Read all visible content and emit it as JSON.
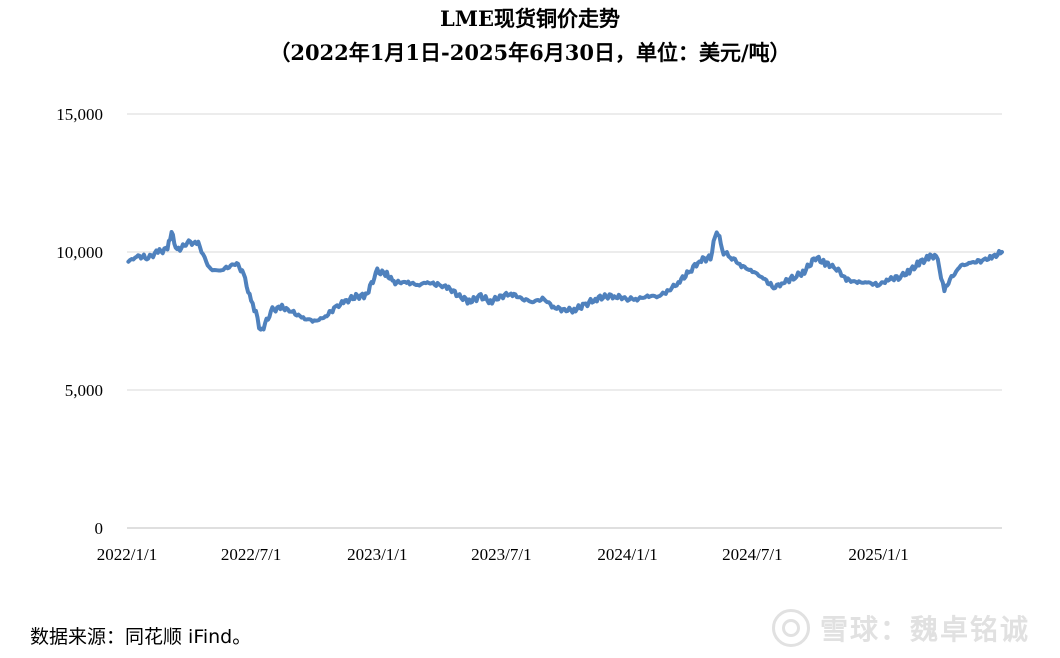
{
  "chart_data": {
    "type": "line",
    "title": "LME现货铜价走势",
    "subtitle": "（2022年1月1日-2025年6月30日，单位：美元/吨）",
    "xlabel": "",
    "ylabel": "",
    "ylim": [
      0,
      15000
    ],
    "yticks": [
      0,
      5000,
      10000,
      15000
    ],
    "ytick_labels": [
      "0",
      "5,000",
      "10,000",
      "15,000"
    ],
    "xlim": [
      "2022-01-01",
      "2025-06-30"
    ],
    "xticks": [
      "2022-01-01",
      "2022-07-01",
      "2023-01-01",
      "2023-07-01",
      "2024-01-01",
      "2024-07-01",
      "2025-01-01"
    ],
    "xtick_labels": [
      "2022/1/1",
      "2022/7/1",
      "2023/1/1",
      "2023/7/1",
      "2024/1/1",
      "2024/7/1",
      "2025/1/1"
    ],
    "grid": true,
    "legend": "none",
    "series_color": "#4F81BD",
    "series": [
      {
        "x": [
          "2022-01-03",
          "2022-01-15",
          "2022-02-01",
          "2022-02-15",
          "2022-03-01",
          "2022-03-07",
          "2022-03-15",
          "2022-04-01",
          "2022-04-15",
          "2022-05-01",
          "2022-05-15",
          "2022-06-01",
          "2022-06-10",
          "2022-06-20",
          "2022-07-01",
          "2022-07-08",
          "2022-07-15",
          "2022-08-01",
          "2022-08-15",
          "2022-09-01",
          "2022-09-15",
          "2022-10-01",
          "2022-10-15",
          "2022-11-01",
          "2022-11-15",
          "2022-12-01",
          "2022-12-15",
          "2023-01-01",
          "2023-01-15",
          "2023-01-25",
          "2023-02-15",
          "2023-03-01",
          "2023-03-15",
          "2023-04-01",
          "2023-04-15",
          "2023-05-01",
          "2023-05-15",
          "2023-06-01",
          "2023-06-15",
          "2023-07-01",
          "2023-07-15",
          "2023-08-01",
          "2023-08-15",
          "2023-09-01",
          "2023-09-15",
          "2023-10-01",
          "2023-10-15",
          "2023-11-01",
          "2023-11-15",
          "2023-12-01",
          "2023-12-15",
          "2024-01-01",
          "2024-01-15",
          "2024-02-01",
          "2024-02-15",
          "2024-03-01",
          "2024-03-15",
          "2024-04-01",
          "2024-04-15",
          "2024-05-01",
          "2024-05-10",
          "2024-05-20",
          "2024-06-01",
          "2024-06-15",
          "2024-07-01",
          "2024-07-15",
          "2024-08-01",
          "2024-08-15",
          "2024-09-01",
          "2024-09-15",
          "2024-10-01",
          "2024-10-15",
          "2024-11-01",
          "2024-11-15",
          "2024-12-01",
          "2024-12-15",
          "2025-01-01",
          "2025-01-15",
          "2025-02-01",
          "2025-02-15",
          "2025-03-01",
          "2025-03-15",
          "2025-03-26",
          "2025-04-07",
          "2025-04-15",
          "2025-05-01",
          "2025-05-15",
          "2025-06-01",
          "2025-06-15",
          "2025-06-30"
        ],
        "values": [
          9650,
          9850,
          9800,
          10000,
          10100,
          10700,
          10050,
          10350,
          10300,
          9400,
          9300,
          9500,
          9600,
          9200,
          8200,
          7800,
          7100,
          7900,
          8000,
          7800,
          7600,
          7500,
          7600,
          8000,
          8200,
          8400,
          8400,
          9300,
          9200,
          8900,
          8900,
          8800,
          8900,
          8800,
          8700,
          8400,
          8200,
          8400,
          8200,
          8400,
          8500,
          8300,
          8200,
          8300,
          8000,
          7900,
          7900,
          8100,
          8300,
          8400,
          8400,
          8300,
          8300,
          8400,
          8400,
          8600,
          8900,
          9300,
          9700,
          9800,
          10800,
          10000,
          9800,
          9500,
          9300,
          9100,
          8700,
          8900,
          9100,
          9300,
          9800,
          9600,
          9400,
          9000,
          8900,
          8900,
          8800,
          9000,
          9100,
          9300,
          9600,
          9800,
          9900,
          8600,
          9000,
          9500,
          9600,
          9700,
          9800,
          10000
        ]
      }
    ]
  },
  "source_text": "数据来源：同花顺 iFind。",
  "watermark_text": "雪球：魏卓铭诚"
}
